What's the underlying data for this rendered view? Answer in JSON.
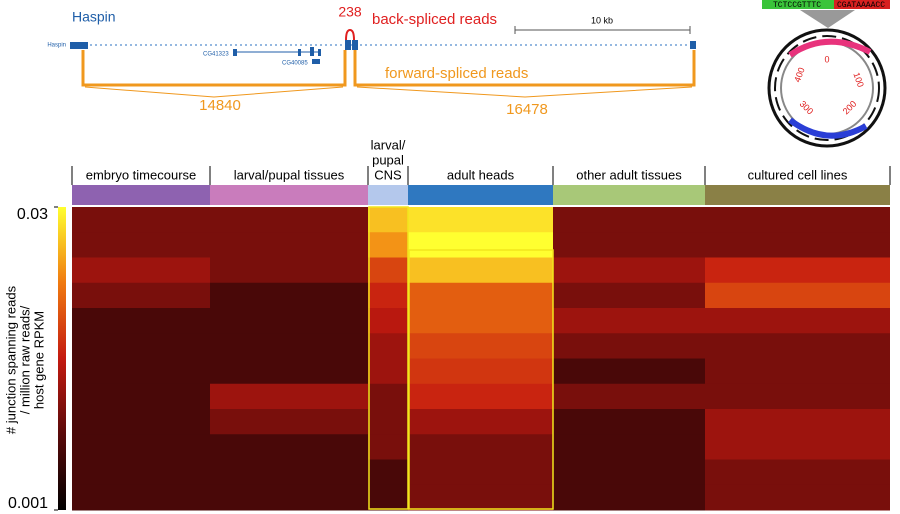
{
  "gene_diagram": {
    "gene_label": "Haspin",
    "track_label": "Haspin",
    "back_spliced_count": 238,
    "back_spliced_label": "back-spliced reads",
    "scale_label": "10 kb",
    "nested_genes": [
      "CG41323",
      "CG40085"
    ],
    "forward_spliced_label": "forward-spliced reads",
    "forward_counts": [
      14840,
      16478
    ]
  },
  "circle_diagram": {
    "sequence_left": "TCTCCGTTTC",
    "sequence_right": "CGATAAAACC",
    "positions": [
      0,
      100,
      200,
      300,
      400
    ]
  },
  "heatmap": {
    "axis_title": [
      "# junction spanning reads",
      "/ million raw reads/",
      "host gene RPKM"
    ],
    "scale": {
      "min": 0.001,
      "max": 0.03,
      "log": true,
      "ticks": [
        0.03,
        0.001
      ],
      "colors": [
        "#000000",
        "#5a0a0a",
        "#c41a10",
        "#f07a10",
        "#ffff30"
      ]
    },
    "groups": [
      {
        "label": [
          "embryo timecourse"
        ],
        "strip_color": "#8e62b0"
      },
      {
        "label": [
          "larval/pupal tissues"
        ],
        "strip_color": "#c97cbc"
      },
      {
        "label": [
          "larval/",
          "pupal",
          "CNS"
        ],
        "strip_color": "#b4c8ec"
      },
      {
        "label": [
          "adult heads"
        ],
        "strip_color": "#2f78c0"
      },
      {
        "label": [
          "other adult tissues"
        ],
        "strip_color": "#a8c878"
      },
      {
        "label": [
          "cultured cell lines"
        ],
        "strip_color": "#8a8046"
      }
    ],
    "values": [
      [
        0.003,
        0.003,
        0.02,
        0.025,
        0.003,
        0.003
      ],
      [
        0.003,
        0.003,
        0.015,
        0.03,
        0.003,
        0.003
      ],
      [
        0.004,
        0.003,
        0.008,
        0.02,
        0.004,
        0.006
      ],
      [
        0.003,
        0.002,
        0.006,
        0.01,
        0.003,
        0.008
      ],
      [
        0.002,
        0.002,
        0.005,
        0.01,
        0.004,
        0.004
      ],
      [
        0.002,
        0.002,
        0.004,
        0.008,
        0.003,
        0.003
      ],
      [
        0.002,
        0.002,
        0.004,
        0.007,
        0.002,
        0.003
      ],
      [
        0.002,
        0.004,
        0.003,
        0.006,
        0.003,
        0.003
      ],
      [
        0.002,
        0.003,
        0.003,
        0.004,
        0.002,
        0.004
      ],
      [
        0.002,
        0.002,
        0.003,
        0.003,
        0.002,
        0.004
      ],
      [
        0.002,
        0.002,
        0.002,
        0.003,
        0.002,
        0.003
      ],
      [
        0.002,
        0.002,
        0.002,
        0.003,
        0.002,
        0.003
      ]
    ]
  }
}
